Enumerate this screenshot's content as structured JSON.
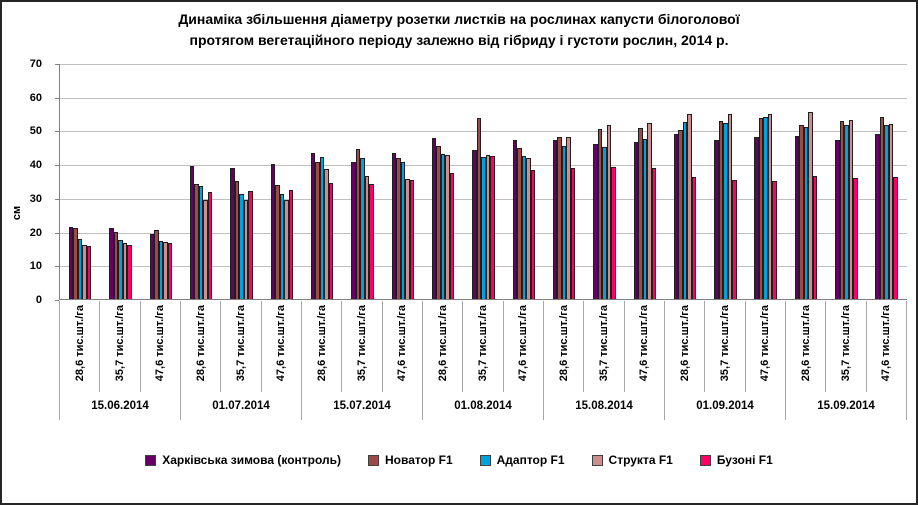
{
  "title": {
    "line1": "Динаміка збільшення діаметру розетки листків на рослинах капусти білоголової",
    "line2": "протягом вегетаційного періоду залежно від гібриду і густоти рослин, 2014 р."
  },
  "chart_data": {
    "type": "bar",
    "title": "Динаміка збільшення діаметру розетки листків на рослинах капусти білоголової протягом вегетаційного періоду залежно від гібриду і густоти рослин, 2014 р.",
    "xlabel": "",
    "ylabel": "см",
    "ylim": [
      0,
      70
    ],
    "yticks": [
      0,
      10,
      20,
      30,
      40,
      50,
      60,
      70
    ],
    "grid": true,
    "legend_position": "bottom",
    "dates": [
      "15.06.2014",
      "01.07.2014",
      "15.07.2014",
      "01.08.2014",
      "15.08.2014",
      "01.09.2014",
      "15.09.2014"
    ],
    "densities": [
      "28,6 тис.шт./га",
      "35,7 тис.шт./га",
      "47,6 тис.шт./га"
    ],
    "group_order": "dates x densities (21 groups)",
    "series": [
      {
        "name": "Харківська зимова (контроль)",
        "color": "#660066",
        "values": [
          21.4,
          21.1,
          19.3,
          39.6,
          38.8,
          40.0,
          43.3,
          40.7,
          43.2,
          47.7,
          44.2,
          47.1,
          47.2,
          46.1,
          46.7,
          48.9,
          47.1,
          48.1,
          48.3,
          47.3,
          48.9
        ]
      },
      {
        "name": "Новатор F1",
        "color": "#9E4B47",
        "values": [
          21.1,
          19.9,
          20.4,
          34.0,
          34.9,
          33.9,
          40.7,
          44.4,
          41.7,
          45.4,
          53.6,
          44.7,
          48.1,
          50.4,
          50.6,
          50.1,
          52.9,
          53.6,
          51.5,
          52.8,
          54.1
        ]
      },
      {
        "name": "Адаптор F1",
        "color": "#00A2DE",
        "values": [
          17.8,
          17.4,
          17.1,
          33.5,
          31.1,
          31.3,
          42.2,
          41.7,
          40.7,
          42.9,
          42.0,
          42.4,
          45.4,
          45.1,
          47.6,
          52.6,
          52.1,
          53.9,
          51.1,
          51.5,
          51.5
        ]
      },
      {
        "name": "Структа F1",
        "color": "#CE8E8E",
        "values": [
          16.1,
          16.6,
          16.8,
          29.5,
          29.3,
          29.5,
          38.7,
          36.4,
          35.7,
          42.7,
          42.7,
          41.9,
          48.1,
          51.5,
          52.1,
          55.0,
          54.8,
          55.0,
          55.5,
          53.1,
          51.8
        ]
      },
      {
        "name": "Бузоні F1",
        "color": "#FF0066",
        "values": [
          15.7,
          15.9,
          16.7,
          31.7,
          32.1,
          32.2,
          34.5,
          34.1,
          35.4,
          37.4,
          42.5,
          38.4,
          39.0,
          39.3,
          39.0,
          36.2,
          35.2,
          34.9,
          36.5,
          36.0,
          36.2
        ]
      }
    ]
  }
}
